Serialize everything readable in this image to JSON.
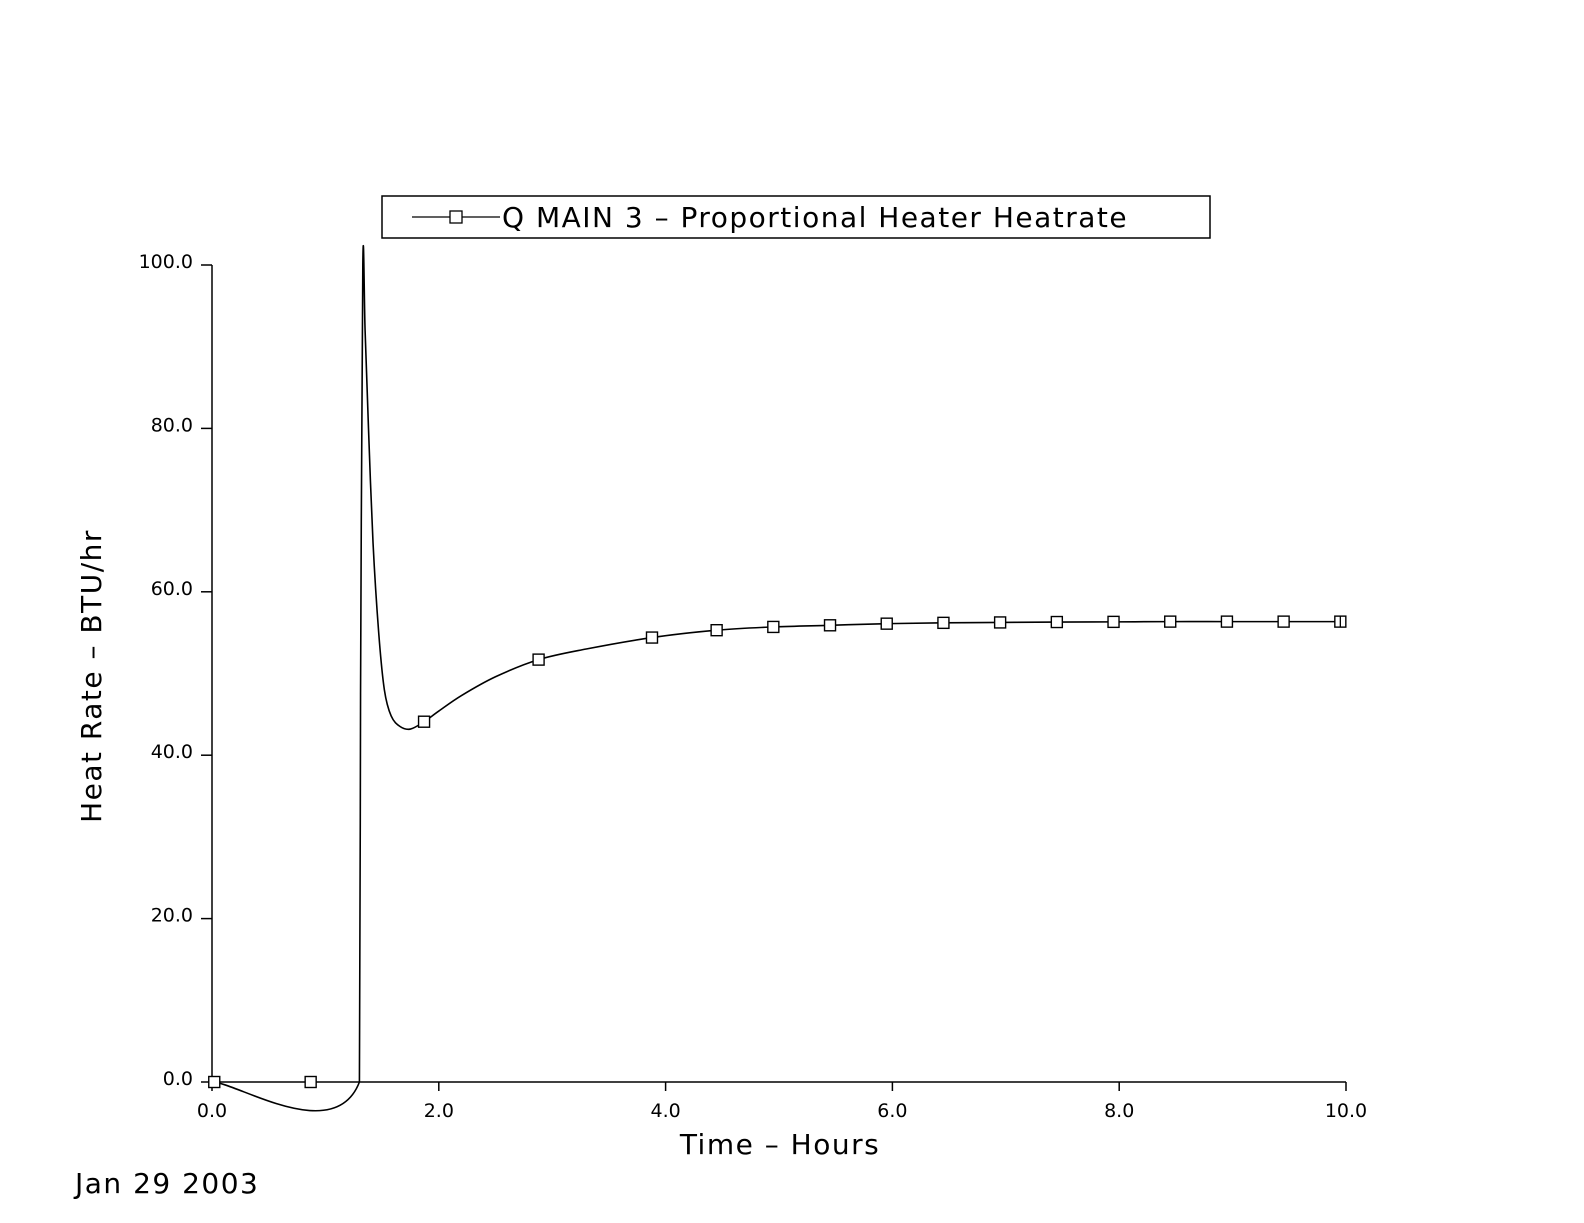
{
  "chart_data": {
    "type": "line",
    "title": "",
    "xlabel": "Time  –  Hours",
    "ylabel": "Heat  Rate  –  BTU/hr",
    "xlim": [
      0,
      10
    ],
    "ylim": [
      0,
      100
    ],
    "grid": false,
    "legend_position": "top-center",
    "x_ticks": [
      0,
      2,
      4,
      6,
      8,
      10
    ],
    "x_tick_labels": [
      "0.0",
      "2.0",
      "4.0",
      "6.0",
      "8.0",
      "10.0"
    ],
    "y_ticks": [
      0,
      20,
      40,
      60,
      80,
      100
    ],
    "y_tick_labels": [
      "0.0",
      "20.0",
      "40.0",
      "60.0",
      "80.0",
      "100.0"
    ],
    "series": [
      {
        "name": "Q MAIN 3 – Proportional Heater Heatrate",
        "color": "#000000",
        "marker": "square",
        "curve": [
          [
            0.0,
            0.0
          ],
          [
            1.3,
            0.0
          ],
          [
            1.31,
            47.5
          ],
          [
            1.33,
            100.0
          ],
          [
            1.35,
            92.0
          ],
          [
            1.38,
            80.0
          ],
          [
            1.42,
            66.0
          ],
          [
            1.47,
            55.0
          ],
          [
            1.52,
            48.0
          ],
          [
            1.58,
            44.8
          ],
          [
            1.66,
            43.5
          ],
          [
            1.75,
            43.2
          ],
          [
            1.87,
            44.1
          ],
          [
            2.0,
            45.4
          ],
          [
            2.2,
            47.3
          ],
          [
            2.5,
            49.6
          ],
          [
            2.88,
            51.7
          ],
          [
            3.3,
            53.0
          ],
          [
            3.88,
            54.4
          ],
          [
            4.45,
            55.3
          ],
          [
            4.95,
            55.7
          ],
          [
            5.45,
            55.9
          ],
          [
            5.95,
            56.1
          ],
          [
            6.45,
            56.2
          ],
          [
            6.95,
            56.25
          ],
          [
            7.45,
            56.3
          ],
          [
            7.95,
            56.32
          ],
          [
            8.45,
            56.35
          ],
          [
            8.95,
            56.35
          ],
          [
            9.45,
            56.35
          ],
          [
            9.95,
            56.35
          ]
        ],
        "markers": [
          [
            0.02,
            0.0
          ],
          [
            0.87,
            0.0
          ],
          [
            1.87,
            44.1
          ],
          [
            2.88,
            51.7
          ],
          [
            3.88,
            54.4
          ],
          [
            4.45,
            55.3
          ],
          [
            4.95,
            55.7
          ],
          [
            5.45,
            55.9
          ],
          [
            5.95,
            56.1
          ],
          [
            6.45,
            56.2
          ],
          [
            6.95,
            56.25
          ],
          [
            7.45,
            56.3
          ],
          [
            7.95,
            56.32
          ],
          [
            8.45,
            56.35
          ],
          [
            8.95,
            56.35
          ],
          [
            9.45,
            56.35
          ],
          [
            9.95,
            56.35
          ]
        ]
      }
    ]
  },
  "footer": {
    "date": "Jan  29  2003"
  }
}
